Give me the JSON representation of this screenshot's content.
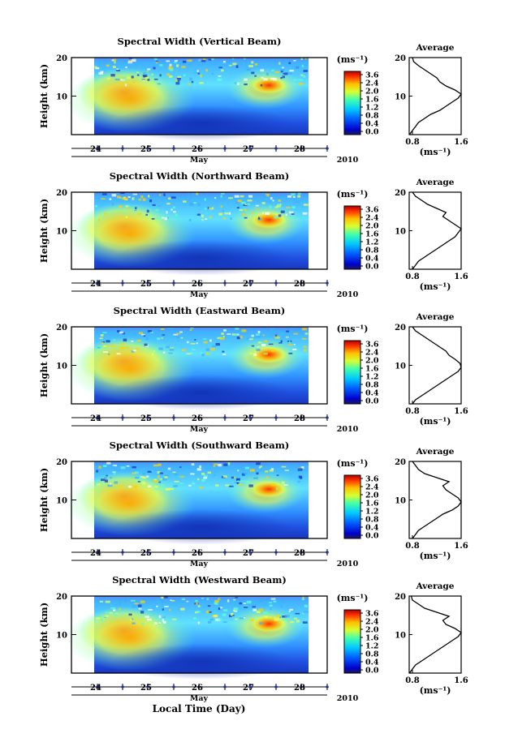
{
  "chart_data": {
    "type": "heatmap",
    "x_ticks": [
      "24",
      "25",
      "26",
      "27",
      "28"
    ],
    "x_month": "May",
    "x_year": "2010",
    "y_label": "Height (km)",
    "y_ticks": [
      "20",
      "10"
    ],
    "colorbar": {
      "unit": "(ms⁻¹)",
      "ticks": [
        "3.6",
        "2.4",
        "2.0",
        "1.6",
        "1.2",
        "0.8",
        "0.4",
        "0.0"
      ]
    },
    "average": {
      "title": "Average",
      "unit": "(ms⁻¹)",
      "x_ticks": [
        "0.8",
        "1.6"
      ]
    },
    "xlabel": "Local Time (Day)",
    "panels": [
      {
        "title": "Spectral Width (Vertical Beam)",
        "avg_heights_km": [
          1,
          2,
          3,
          4,
          5,
          6,
          7,
          8,
          9,
          10,
          11,
          12,
          13,
          14,
          15,
          16,
          17,
          18,
          19,
          20
        ],
        "avg_values": [
          0.75,
          0.8,
          0.85,
          0.9,
          1.0,
          1.1,
          1.25,
          1.35,
          1.45,
          1.55,
          1.6,
          1.5,
          1.35,
          1.25,
          1.2,
          1.1,
          1.0,
          0.9,
          0.82,
          0.8
        ]
      },
      {
        "title": "Spectral Width (Northward Beam)",
        "avg_heights_km": [
          1,
          2,
          3,
          4,
          5,
          6,
          7,
          8,
          9,
          10,
          11,
          12,
          13,
          14,
          15,
          16,
          17,
          18,
          19,
          20
        ],
        "avg_values": [
          0.8,
          0.85,
          0.9,
          1.0,
          1.1,
          1.2,
          1.3,
          1.4,
          1.5,
          1.55,
          1.6,
          1.5,
          1.4,
          1.3,
          1.35,
          1.2,
          1.05,
          0.95,
          0.85,
          0.8
        ]
      },
      {
        "title": "Spectral Width (Eastward Beam)",
        "avg_heights_km": [
          1,
          2,
          3,
          4,
          5,
          6,
          7,
          8,
          9,
          10,
          11,
          12,
          13,
          14,
          15,
          16,
          17,
          18,
          19,
          20
        ],
        "avg_values": [
          0.8,
          0.85,
          0.95,
          1.05,
          1.15,
          1.25,
          1.35,
          1.45,
          1.55,
          1.6,
          1.58,
          1.5,
          1.4,
          1.35,
          1.25,
          1.15,
          1.05,
          0.95,
          0.85,
          0.8
        ]
      },
      {
        "title": "Spectral Width (Southward Beam)",
        "avg_heights_km": [
          1,
          2,
          3,
          4,
          5,
          6,
          7,
          8,
          9,
          10,
          11,
          12,
          13,
          14,
          15,
          16,
          17,
          18,
          19,
          20
        ],
        "avg_values": [
          0.8,
          0.85,
          0.9,
          1.0,
          1.1,
          1.2,
          1.3,
          1.45,
          1.55,
          1.6,
          1.55,
          1.45,
          1.35,
          1.3,
          1.4,
          1.2,
          1.0,
          0.9,
          0.85,
          0.8
        ]
      },
      {
        "title": "Spectral Width (Westward Beam)",
        "avg_heights_km": [
          1,
          2,
          3,
          4,
          5,
          6,
          7,
          8,
          9,
          10,
          11,
          12,
          13,
          14,
          15,
          16,
          17,
          18,
          19,
          20
        ],
        "avg_values": [
          0.75,
          0.8,
          0.85,
          0.95,
          1.05,
          1.15,
          1.25,
          1.35,
          1.45,
          1.55,
          1.6,
          1.5,
          1.35,
          1.3,
          1.4,
          1.2,
          1.0,
          0.9,
          0.8,
          0.78
        ]
      }
    ]
  }
}
